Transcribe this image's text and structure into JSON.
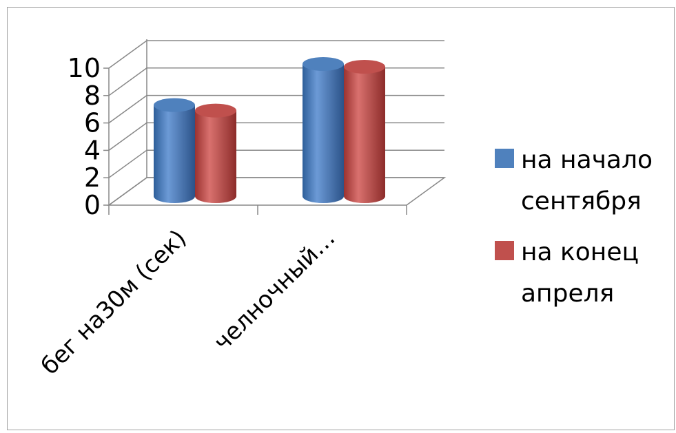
{
  "chart_data": {
    "type": "bar",
    "categories": [
      "бег на30м (сек)",
      "челночный…"
    ],
    "series": [
      {
        "name": "на начало сентября",
        "values": [
          6.7,
          9.7
        ],
        "color": "#4f81bd"
      },
      {
        "name": "на конец апреля",
        "values": [
          6.3,
          9.5
        ],
        "color": "#c0504d"
      }
    ],
    "y_ticks": [
      "0",
      "2",
      "4",
      "6",
      "8",
      "10"
    ],
    "ylim": [
      0,
      10
    ],
    "grid": true,
    "legend_position": "right",
    "legend": [
      {
        "lines": [
          "на начало",
          "сентября"
        ]
      },
      {
        "lines": [
          "на конец",
          "апреля"
        ]
      }
    ]
  }
}
